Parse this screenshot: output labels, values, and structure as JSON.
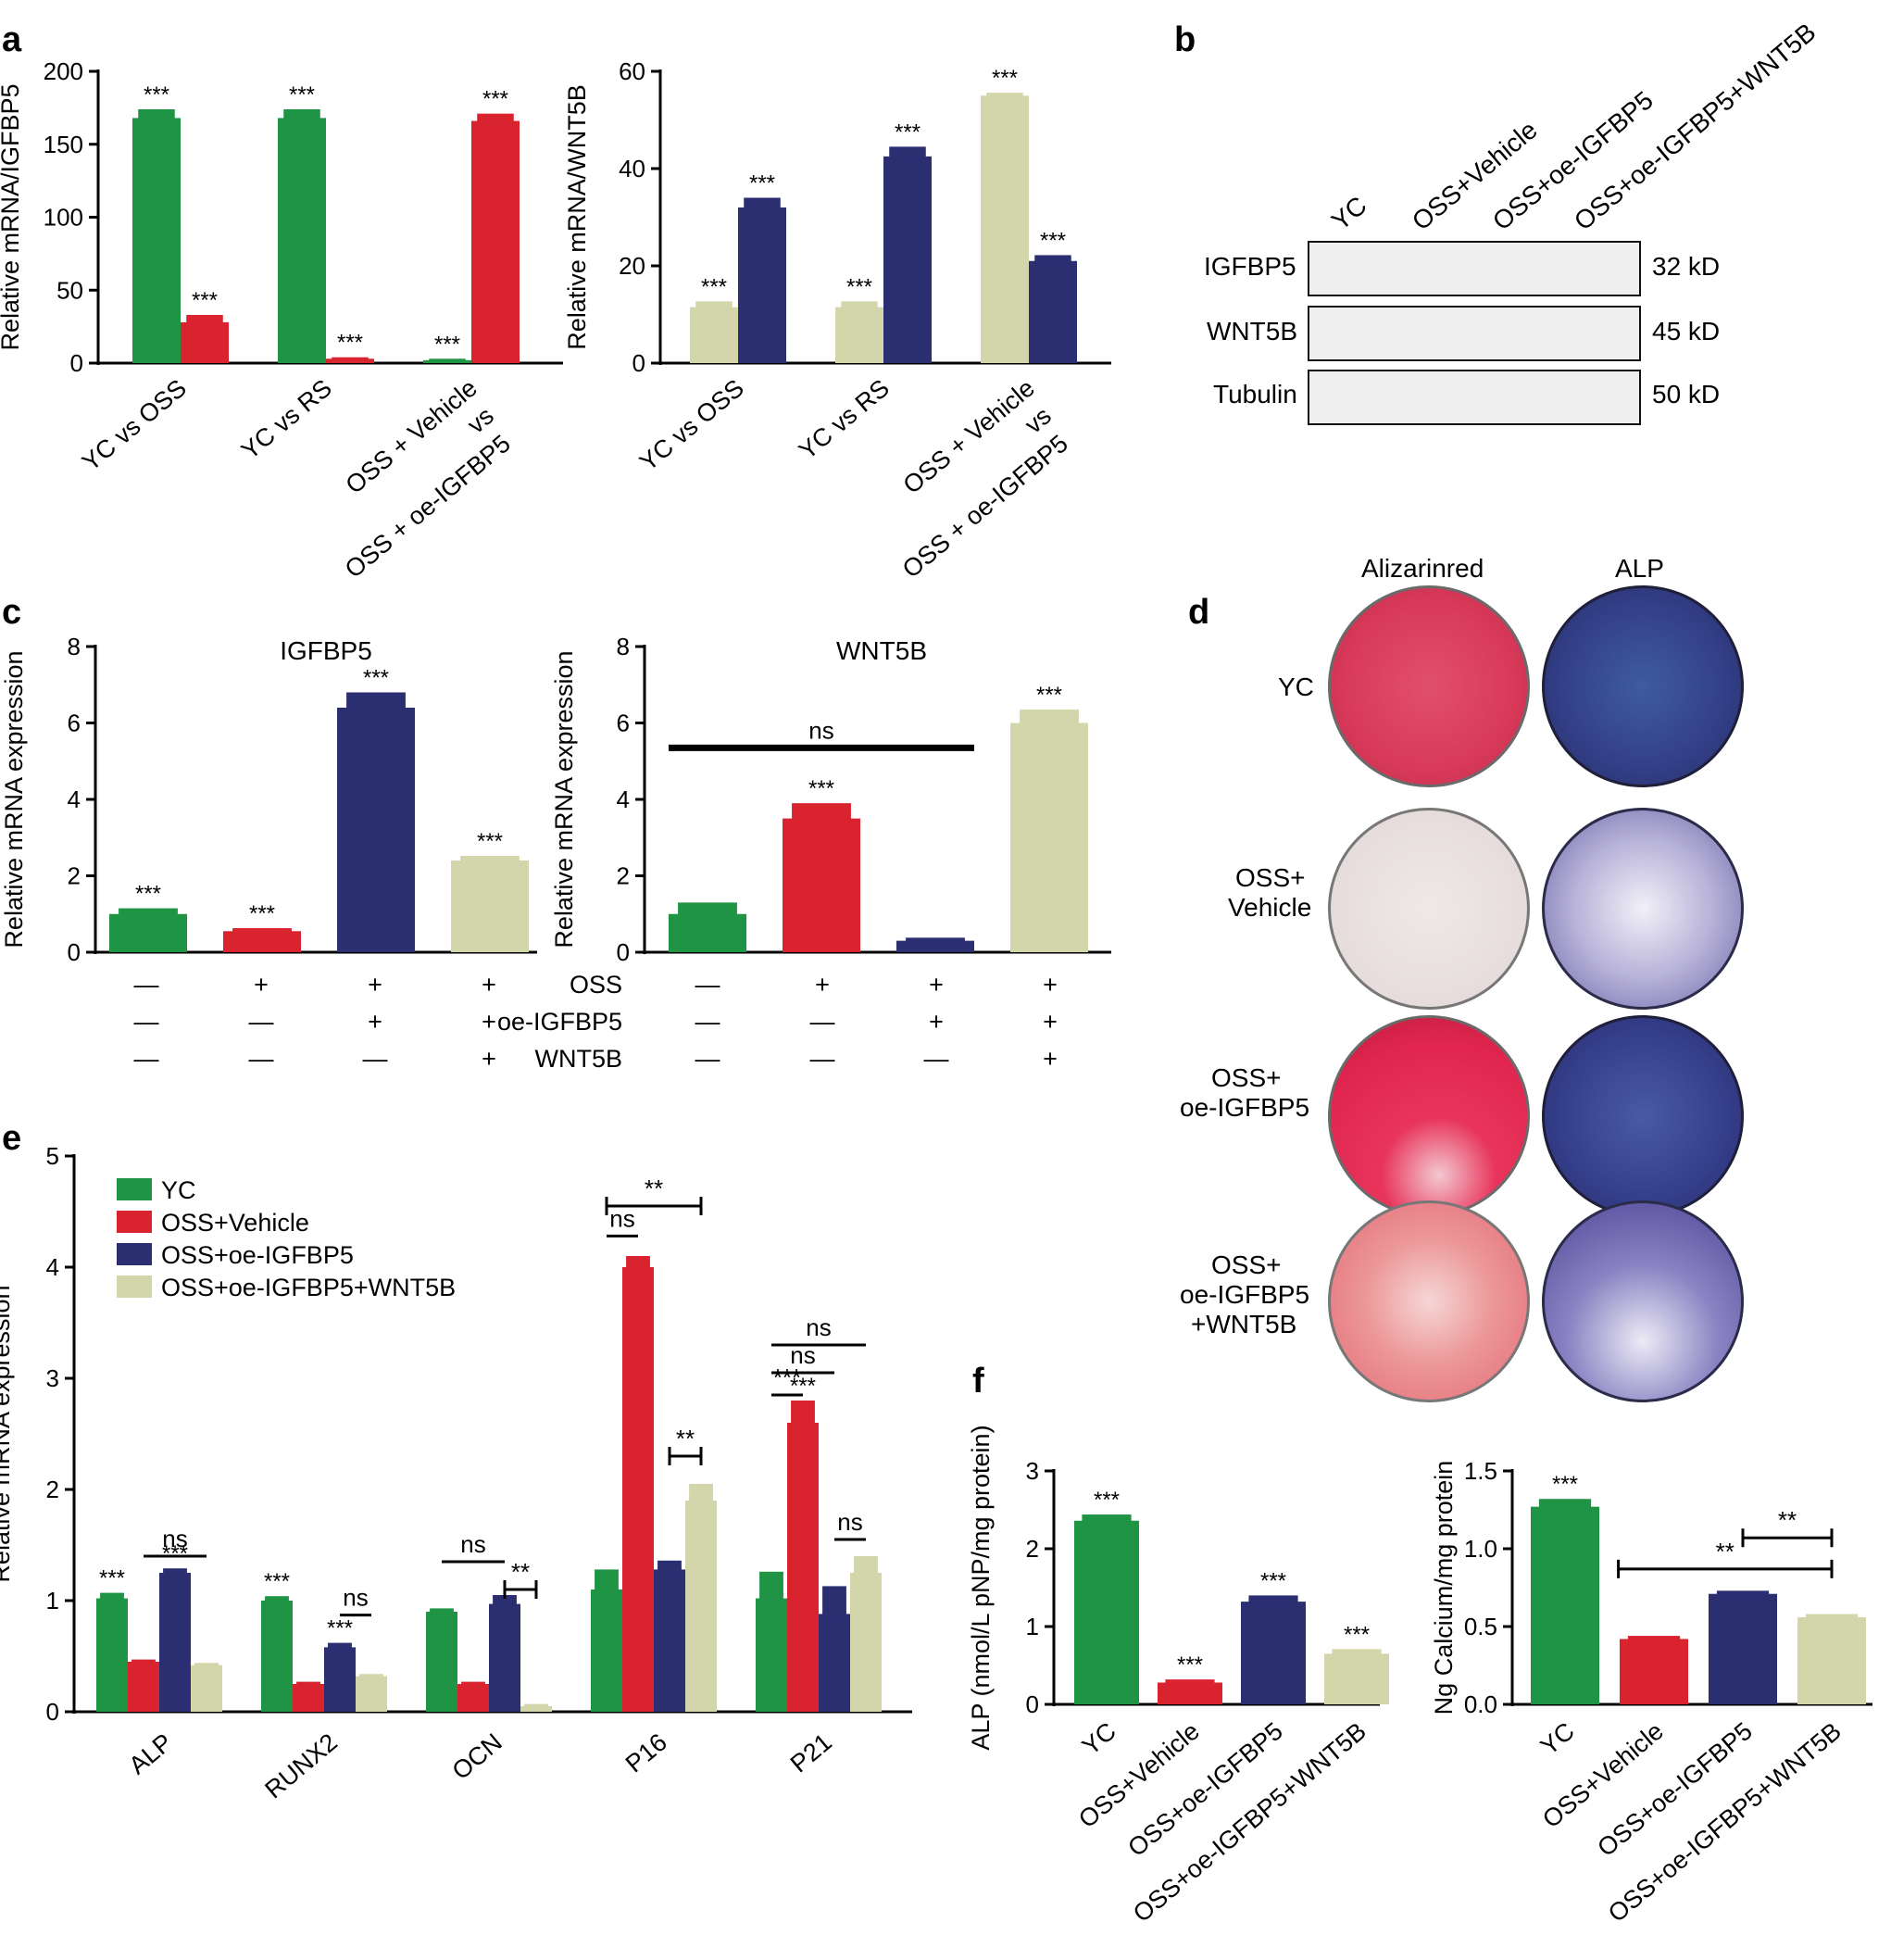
{
  "panel_letters": {
    "a": "a",
    "b": "b",
    "c": "c",
    "d": "d",
    "e": "e",
    "f": "f"
  },
  "colors": {
    "green": "#1f9445",
    "red": "#d92430",
    "navy": "#2b2f72",
    "khaki": "#d3d6ab"
  },
  "chart_data": [
    {
      "id": "a-left",
      "type": "bar",
      "ylabel": "Relative mRNA/IGFBP5",
      "ylim": [
        0,
        200
      ],
      "yticks": [
        0,
        50,
        100,
        150,
        200
      ],
      "categories": [
        [
          "YC vs OSS"
        ],
        [
          "YC vs RS"
        ],
        [
          "OSS + Vehicle",
          "vs",
          "OSS + oe-IGFBP5"
        ]
      ],
      "series": [
        {
          "color": "green",
          "values": [
            168,
            168,
            2
          ],
          "errors": [
            6,
            6,
            1
          ],
          "labels": [
            "***",
            "***",
            "***"
          ]
        },
        {
          "color": "red",
          "values": [
            28,
            3,
            166
          ],
          "errors": [
            5,
            1,
            5
          ],
          "labels": [
            "***",
            "***",
            "***"
          ]
        }
      ]
    },
    {
      "id": "a-right",
      "type": "bar",
      "ylabel": "Relative mRNA/WNT5B",
      "ylim": [
        0,
        60
      ],
      "yticks": [
        0,
        20,
        40,
        60
      ],
      "categories": [
        [
          "YC vs OSS"
        ],
        [
          "YC vs RS"
        ],
        [
          "OSS + Vehicle",
          "vs",
          "OSS + oe-IGFBP5"
        ]
      ],
      "series": [
        {
          "color": "khaki",
          "values": [
            11.5,
            11.5,
            55
          ],
          "errors": [
            1.2,
            1.2,
            0.6
          ],
          "labels": [
            "***",
            "***",
            "***"
          ]
        },
        {
          "color": "navy",
          "values": [
            32,
            42.5,
            21
          ],
          "errors": [
            2,
            2,
            1.2
          ],
          "labels": [
            "***",
            "***",
            "***"
          ]
        }
      ]
    },
    {
      "id": "c-left",
      "type": "bar",
      "title": "IGFBP5",
      "ylabel": "Relative mRNA expression",
      "ylim": [
        0,
        8
      ],
      "yticks": [
        0,
        2,
        4,
        6,
        8
      ],
      "bars": [
        {
          "color": "green",
          "value": 1.0,
          "error": 0.15,
          "label": "***"
        },
        {
          "color": "red",
          "value": 0.55,
          "error": 0.08,
          "label": "***"
        },
        {
          "color": "navy",
          "value": 6.4,
          "error": 0.4,
          "label": "***"
        },
        {
          "color": "khaki",
          "value": 2.4,
          "error": 0.12,
          "label": "***"
        }
      ]
    },
    {
      "id": "c-right",
      "type": "bar",
      "title": "WNT5B",
      "ylabel": "Relative mRNA expression",
      "ylim": [
        0,
        8
      ],
      "yticks": [
        0,
        2,
        4,
        6,
        8
      ],
      "bars": [
        {
          "color": "green",
          "value": 1.0,
          "error": 0.3,
          "label": ""
        },
        {
          "color": "red",
          "value": 3.5,
          "error": 0.4,
          "label": "***"
        },
        {
          "color": "navy",
          "value": 0.3,
          "error": 0.08,
          "label": ""
        },
        {
          "color": "khaki",
          "value": 6.0,
          "error": 0.35,
          "label": "***"
        }
      ],
      "brackets": [
        {
          "from": 0,
          "to": 2,
          "level": 5.35,
          "label": "ns",
          "thick": true
        }
      ]
    },
    {
      "id": "e",
      "type": "bar",
      "ylabel": "Relative mRNA expression",
      "ylim": [
        0,
        5
      ],
      "yticks": [
        0,
        1,
        2,
        3,
        4,
        5
      ],
      "categories": [
        "ALP",
        "RUNX2",
        "OCN",
        "P16",
        "P21"
      ],
      "legend": [
        "YC",
        "OSS+Vehicle",
        "OSS+oe-IGFBP5",
        "OSS+oe-IGFBP5+WNT5B"
      ],
      "series": [
        {
          "name": "YC",
          "color": "green",
          "values": [
            1.02,
            1.0,
            0.9,
            1.1,
            1.02
          ],
          "errors": [
            0.05,
            0.04,
            0.03,
            0.18,
            0.24
          ],
          "labels": [
            "***",
            "***",
            "",
            "",
            ""
          ]
        },
        {
          "name": "OSS+Vehicle",
          "color": "red",
          "values": [
            0.45,
            0.25,
            0.25,
            4.0,
            2.6
          ],
          "errors": [
            0.02,
            0.02,
            0.02,
            0.1,
            0.2
          ],
          "labels": [
            "",
            "",
            "",
            "",
            "***"
          ]
        },
        {
          "name": "OSS+oe-IGFBP5",
          "color": "navy",
          "values": [
            1.25,
            0.58,
            0.97,
            1.28,
            0.88
          ],
          "errors": [
            0.04,
            0.04,
            0.08,
            0.08,
            0.25
          ],
          "labels": [
            "***",
            "***",
            "",
            "",
            ""
          ]
        },
        {
          "name": "OSS+oe-IGFBP5+WNT5B",
          "color": "khaki",
          "values": [
            0.42,
            0.32,
            0.05,
            1.9,
            1.25
          ],
          "errors": [
            0.02,
            0.02,
            0.02,
            0.15,
            0.15
          ],
          "labels": [
            "",
            "",
            "",
            "",
            ""
          ]
        }
      ],
      "brackets": [
        {
          "group": 0,
          "from": 1,
          "to": 3,
          "level": 1.4,
          "label": "ns"
        },
        {
          "group": 1,
          "from": 2,
          "to": 3,
          "level": 0.87,
          "label": "ns"
        },
        {
          "group": 2,
          "from": 0,
          "to": 2,
          "level": 1.35,
          "label": "ns"
        },
        {
          "group": 2,
          "from": 2,
          "to": 3,
          "level": 1.1,
          "label": "**",
          "ticks": true
        },
        {
          "group": 3,
          "from": 0,
          "to": 3,
          "level": 4.55,
          "label": "**",
          "ticks": true
        },
        {
          "group": 3,
          "from": 0,
          "to": 1,
          "level": 4.28,
          "label": "ns"
        },
        {
          "group": 3,
          "from": 2,
          "to": 3,
          "level": 2.3,
          "label": "**",
          "ticks": true
        },
        {
          "group": 4,
          "from": 0,
          "to": 3,
          "level": 3.3,
          "label": "ns"
        },
        {
          "group": 4,
          "from": 0,
          "to": 2,
          "level": 3.05,
          "label": "ns"
        },
        {
          "group": 4,
          "from": 0,
          "to": 1,
          "level": 2.85,
          "label": "***"
        },
        {
          "group": 4,
          "from": 2,
          "to": 3,
          "level": 1.55,
          "label": "ns"
        }
      ]
    },
    {
      "id": "f-left",
      "type": "bar",
      "ylabel": "ALP (nmol/L pNP/mg protein)",
      "ylim": [
        0,
        3
      ],
      "yticks": [
        0,
        1,
        2,
        3
      ],
      "categories": [
        "YC",
        "OSS+Vehicle",
        "OSS+oe-IGFBP5",
        "OSS+oe-IGFBP5+WNT5B"
      ],
      "bars": [
        {
          "color": "green",
          "value": 2.36,
          "error": 0.08,
          "label": "***"
        },
        {
          "color": "red",
          "value": 0.28,
          "error": 0.04,
          "label": "***"
        },
        {
          "color": "navy",
          "value": 1.32,
          "error": 0.08,
          "label": "***"
        },
        {
          "color": "khaki",
          "value": 0.65,
          "error": 0.06,
          "label": "***"
        }
      ]
    },
    {
      "id": "f-right",
      "type": "bar",
      "ylabel": "Ng Calcium/mg protein",
      "ylim": [
        0,
        1.5
      ],
      "yticks": [
        "0.0",
        "0.5",
        "1.0",
        "1.5"
      ],
      "categories": [
        "YC",
        "OSS+Vehicle",
        "OSS+oe-IGFBP5",
        "OSS+oe-IGFBP5+WNT5B"
      ],
      "bars": [
        {
          "color": "green",
          "value": 1.27,
          "error": 0.05,
          "label": "***"
        },
        {
          "color": "red",
          "value": 0.42,
          "error": 0.02,
          "label": ""
        },
        {
          "color": "navy",
          "value": 0.71,
          "error": 0.02,
          "label": ""
        },
        {
          "color": "khaki",
          "value": 0.56,
          "error": 0.02,
          "label": ""
        }
      ],
      "brackets": [
        {
          "from": 2,
          "to": 3,
          "level": 1.07,
          "label": "**",
          "ticks": true
        },
        {
          "from": 0.6,
          "to": 3,
          "level": 0.87,
          "label": "**",
          "ticks": true
        }
      ]
    }
  ],
  "panel_c_table": {
    "row_labels": [
      "OSS",
      "oe-IGFBP5",
      "WNT5B"
    ],
    "rows": [
      [
        "—",
        "+",
        "+",
        "+"
      ],
      [
        "—",
        "—",
        "+",
        "+"
      ],
      [
        "—",
        "—",
        "—",
        "+"
      ]
    ]
  },
  "western_blot": {
    "lanes": [
      "YC",
      "OSS+Vehicle",
      "OSS+oe-IGFBP5",
      "OSS+oe-IGFBP5+WNT5B"
    ],
    "rows": [
      {
        "label": "IGFBP5",
        "size": "32 kD",
        "intensity": [
          0.85,
          0.35,
          1.0,
          0.9
        ]
      },
      {
        "label": "WNT5B",
        "size": "45 kD",
        "intensity": [
          0.8,
          0.85,
          0.55,
          1.0
        ]
      },
      {
        "label": "Tubulin",
        "size": "50 kD",
        "intensity": [
          0.95,
          0.95,
          0.95,
          0.95
        ]
      }
    ]
  },
  "staining": {
    "columns": [
      "Alizarinred",
      "ALP"
    ],
    "rows": [
      {
        "label": [
          "YC"
        ],
        "alizarin_level": 0.75,
        "alp_level": 0.95
      },
      {
        "label": [
          "OSS+",
          "Vehicle"
        ],
        "alizarin_level": 0.05,
        "alp_level": 0.35
      },
      {
        "label": [
          "OSS+",
          "oe-IGFBP5"
        ],
        "alizarin_level": 1.0,
        "alp_level": 0.9
      },
      {
        "label": [
          "OSS+",
          "oe-IGFBP5",
          "+WNT5B"
        ],
        "alizarin_level": 0.55,
        "alp_level": 0.6
      }
    ]
  }
}
